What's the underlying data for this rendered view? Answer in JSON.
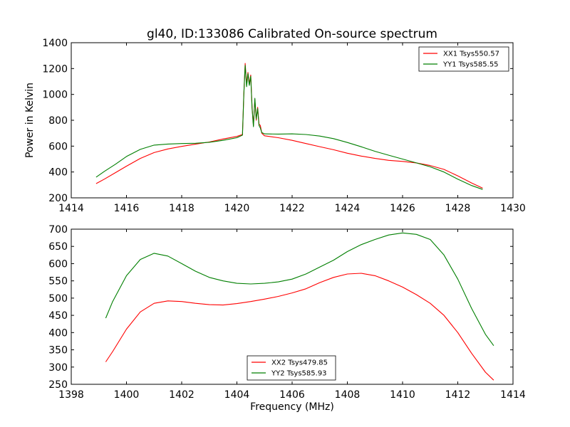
{
  "chart_data": [
    {
      "type": "line",
      "title": "gl40, ID:133086 Calibrated On-source spectrum",
      "xlabel": "",
      "ylabel": "Power in Kelvin",
      "xlim": [
        1414,
        1430
      ],
      "ylim": [
        200,
        1400
      ],
      "xticks": [
        1414,
        1416,
        1418,
        1420,
        1422,
        1424,
        1426,
        1428,
        1430
      ],
      "yticks": [
        200,
        400,
        600,
        800,
        1000,
        1200,
        1400
      ],
      "grid": false,
      "legend_position": "top-right",
      "series": [
        {
          "name": "XX1 Tsys550.57",
          "color": "#ff0000",
          "x": [
            1414.9,
            1415.2,
            1415.6,
            1416.0,
            1416.5,
            1417.0,
            1417.5,
            1418.0,
            1418.5,
            1419.0,
            1419.5,
            1420.0,
            1420.2,
            1420.25,
            1420.3,
            1420.35,
            1420.4,
            1420.45,
            1420.5,
            1420.55,
            1420.6,
            1420.65,
            1420.7,
            1420.75,
            1420.8,
            1420.85,
            1420.9,
            1421.0,
            1421.5,
            1422.0,
            1422.5,
            1423.0,
            1423.5,
            1424.0,
            1424.5,
            1425.0,
            1425.5,
            1426.0,
            1426.5,
            1427.0,
            1427.5,
            1428.0,
            1428.5,
            1428.9
          ],
          "y": [
            310,
            345,
            395,
            445,
            505,
            550,
            578,
            598,
            615,
            632,
            655,
            675,
            690,
            1000,
            1240,
            1080,
            1170,
            1080,
            1150,
            900,
            760,
            960,
            800,
            900,
            770,
            760,
            700,
            680,
            665,
            645,
            620,
            596,
            572,
            545,
            523,
            505,
            490,
            482,
            470,
            450,
            420,
            370,
            315,
            275
          ]
        },
        {
          "name": "YY1 Tsys585.55",
          "color": "#007f00",
          "x": [
            1414.9,
            1415.2,
            1415.6,
            1416.0,
            1416.5,
            1417.0,
            1417.5,
            1418.0,
            1418.5,
            1419.0,
            1419.5,
            1420.0,
            1420.2,
            1420.25,
            1420.3,
            1420.35,
            1420.4,
            1420.45,
            1420.5,
            1420.55,
            1420.6,
            1420.65,
            1420.7,
            1420.75,
            1420.8,
            1420.85,
            1420.9,
            1421.0,
            1421.5,
            1422.0,
            1422.5,
            1423.0,
            1423.5,
            1424.0,
            1424.5,
            1425.0,
            1425.5,
            1426.0,
            1426.5,
            1427.0,
            1427.5,
            1428.0,
            1428.5,
            1428.9
          ],
          "y": [
            360,
            405,
            460,
            520,
            575,
            608,
            616,
            620,
            622,
            630,
            645,
            665,
            685,
            1000,
            1225,
            1060,
            1160,
            1070,
            1140,
            890,
            750,
            970,
            810,
            890,
            760,
            740,
            705,
            695,
            693,
            695,
            690,
            678,
            658,
            628,
            595,
            560,
            530,
            500,
            470,
            440,
            400,
            345,
            295,
            265
          ]
        }
      ]
    },
    {
      "type": "line",
      "title": "",
      "xlabel": "Frequency (MHz)",
      "ylabel": "",
      "xlim": [
        1398,
        1414
      ],
      "ylim": [
        250,
        700
      ],
      "xticks": [
        1398,
        1400,
        1402,
        1404,
        1406,
        1408,
        1410,
        1412,
        1414
      ],
      "yticks": [
        250,
        300,
        350,
        400,
        450,
        500,
        550,
        600,
        650,
        700
      ],
      "grid": false,
      "legend_position": "bottom-center",
      "series": [
        {
          "name": "XX2 Tsys479.85",
          "color": "#ff0000",
          "x": [
            1399.25,
            1399.5,
            1400.0,
            1400.5,
            1401.0,
            1401.5,
            1402.0,
            1402.5,
            1403.0,
            1403.5,
            1404.0,
            1404.5,
            1405.0,
            1405.5,
            1406.0,
            1406.5,
            1407.0,
            1407.5,
            1408.0,
            1408.5,
            1409.0,
            1409.5,
            1410.0,
            1410.5,
            1411.0,
            1411.5,
            1412.0,
            1412.5,
            1413.0,
            1413.3
          ],
          "y": [
            315,
            345,
            410,
            460,
            485,
            492,
            490,
            485,
            481,
            480,
            484,
            490,
            497,
            505,
            515,
            527,
            545,
            560,
            570,
            572,
            565,
            550,
            532,
            510,
            485,
            450,
            400,
            340,
            285,
            262
          ]
        },
        {
          "name": "YY2 Tsys585.93",
          "color": "#007f00",
          "x": [
            1399.25,
            1399.5,
            1400.0,
            1400.5,
            1401.0,
            1401.5,
            1402.0,
            1402.5,
            1403.0,
            1403.5,
            1404.0,
            1404.5,
            1405.0,
            1405.5,
            1406.0,
            1406.5,
            1407.0,
            1407.5,
            1408.0,
            1408.5,
            1409.0,
            1409.5,
            1410.0,
            1410.5,
            1411.0,
            1411.5,
            1412.0,
            1412.5,
            1413.0,
            1413.3
          ],
          "y": [
            442,
            490,
            565,
            612,
            630,
            622,
            600,
            578,
            560,
            550,
            543,
            541,
            543,
            547,
            555,
            570,
            590,
            610,
            635,
            655,
            670,
            683,
            689,
            685,
            670,
            625,
            555,
            470,
            395,
            362
          ]
        }
      ]
    }
  ]
}
